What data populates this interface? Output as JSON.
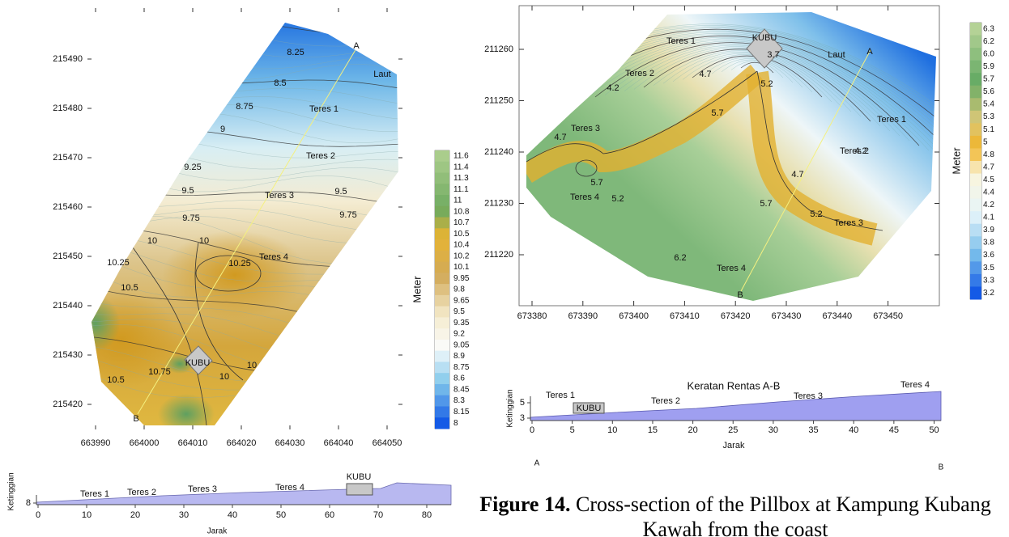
{
  "left_map": {
    "xticks": [
      663990,
      664000,
      664010,
      664020,
      664030,
      664040,
      664050
    ],
    "yticks": [
      215490,
      215480,
      215470,
      215460,
      215450,
      215440,
      215430,
      215420
    ],
    "contour_labels": [
      "8.25",
      "8.5",
      "8.75",
      "9",
      "9.25",
      "9.5",
      "9.5",
      "9.75",
      "9.75",
      "10",
      "10",
      "10.25",
      "10.25",
      "10.5",
      "10.75",
      "10.5",
      "10",
      "10"
    ],
    "area_labels": [
      "A",
      "Laut",
      "Teres 1",
      "Teres 2",
      "Teres 3",
      "Teres 4",
      "KUBU",
      "B"
    ],
    "colorbar": {
      "label": "Meter",
      "ticks": [
        "11.6",
        "11.4",
        "11.3",
        "11.1",
        "11",
        "10.8",
        "10.7",
        "10.5",
        "10.4",
        "10.2",
        "10.1",
        "9.95",
        "9.8",
        "9.65",
        "9.5",
        "9.35",
        "9.2",
        "9.05",
        "8.9",
        "8.75",
        "8.6",
        "8.45",
        "8.3",
        "8.15",
        "8"
      ]
    }
  },
  "left_profile": {
    "ylabel": "Ketinggian",
    "yticks": [
      8
    ],
    "xlabel": "Jarak",
    "xticks": [
      0,
      10,
      20,
      30,
      40,
      50,
      60,
      70,
      80
    ],
    "labels": [
      "Teres 1",
      "Teres 2",
      "Teres 3",
      "Teres 4",
      "KUBU"
    ]
  },
  "right_map": {
    "xticks": [
      673380,
      673390,
      673400,
      673410,
      673420,
      673430,
      673440,
      673450
    ],
    "yticks": [
      211260,
      211250,
      211240,
      211230,
      211220
    ],
    "contour_labels": [
      "4.2",
      "4.7",
      "3.7",
      "5.2",
      "5.7",
      "4.7",
      "5.7",
      "5.2",
      "5.7",
      "4.2",
      "4.7",
      "5.2",
      "6.2"
    ],
    "area_labels": [
      "Teres 1",
      "Teres 2",
      "KUBU",
      "Laut",
      "A",
      "Teres 1",
      "Teres 2",
      "Teres 3",
      "Teres 4",
      "Teres 3",
      "Teres 4",
      "B"
    ],
    "colorbar": {
      "label": "Meter",
      "ticks": [
        "6.3",
        "6.2",
        "6.0",
        "5.9",
        "5.7",
        "5.6",
        "5.4",
        "5.3",
        "5.1",
        "5",
        "4.8",
        "4.7",
        "4.5",
        "4.4",
        "4.2",
        "4.1",
        "3.9",
        "3.8",
        "3.6",
        "3.5",
        "3.3",
        "3.2"
      ]
    }
  },
  "right_profile": {
    "title": "Keratan Rentas A-B",
    "ylabel": "Ketinggian",
    "yticks": [
      5,
      3
    ],
    "xlabel": "Jarak",
    "xticks": [
      0,
      5,
      10,
      15,
      20,
      25,
      30,
      35,
      40,
      45,
      50
    ],
    "labels": [
      "Teres 1",
      "KUBU",
      "Teres 2",
      "Teres 3",
      "Teres 4"
    ],
    "end_labels": [
      "A",
      "B"
    ]
  },
  "caption": {
    "label": "Figure 14.",
    "text": "Cross-section of the Pillbox at Kampung Kubang Kawah from the coast"
  }
}
